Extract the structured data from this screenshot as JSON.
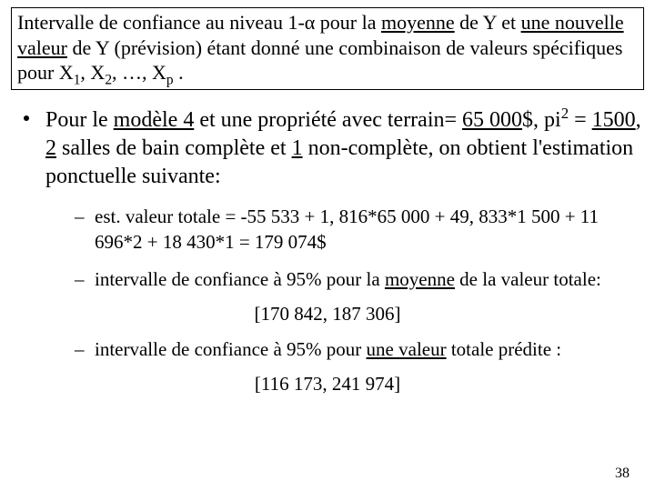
{
  "title": {
    "part1": "Intervalle de confiance au niveau 1-α pour la ",
    "u1": "moyenne",
    "part2": " de Y et ",
    "u2": "une nouvelle valeur",
    "part3": " de Y (prévision) étant donné une combinaison de valeurs spécifiques pour X",
    "sub1": "1",
    "x2": ", X",
    "sub2": "2",
    "xdots": ", …, X",
    "subp": "p",
    "end": " ."
  },
  "main": {
    "p1": "Pour le ",
    "u1": "modèle 4",
    "p2": " et une propriété avec terrain= ",
    "u2": "65 000",
    "p3": "$, pi",
    "sup1": "2",
    "p4": " = ",
    "u3": "1500",
    "p5": ", ",
    "u4": "2",
    "p6": " salles de bain complète et ",
    "u5": "1",
    "p7": " non-complète, on obtient l'estimation ponctuelle suivante:"
  },
  "sub1": {
    "text": "est. valeur totale = -55 533 + 1, 816*65 000 + 49, 833*1 500 + 11 696*2 + 18 430*1 = 179 074$"
  },
  "sub2": {
    "p1": "intervalle de confiance à 95% pour la ",
    "u1": "moyenne",
    "p2": " de la valeur totale:"
  },
  "interval1": "[170 842, 187 306]",
  "sub3": {
    "p1": "intervalle de confiance à 95% pour ",
    "u1": "une valeur",
    "p2": " totale prédite :"
  },
  "interval2": "[116 173, 241 974]",
  "pageNumber": "38"
}
